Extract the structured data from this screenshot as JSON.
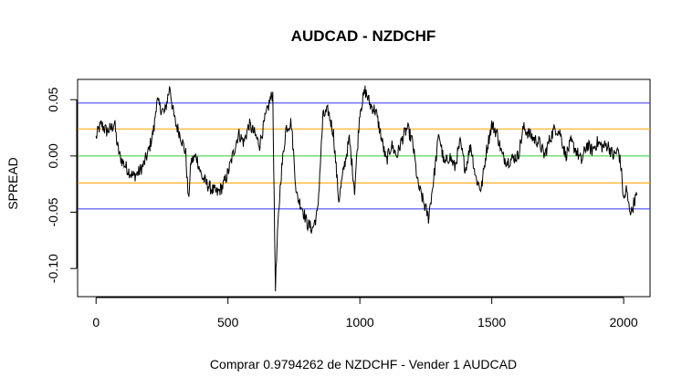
{
  "chart_data": {
    "type": "line",
    "title": "AUDCAD - NZDCHF",
    "xlabel": "Comprar 0.9794262 de NZDCHF - Vender 1 AUDCAD",
    "ylabel": "SPREAD",
    "xlim": [
      -70,
      2100
    ],
    "ylim": [
      -0.125,
      0.068
    ],
    "x_ticks": [
      0,
      500,
      1000,
      1500,
      2000
    ],
    "x_tick_labels": [
      "0",
      "500",
      "1000",
      "1500",
      "2000"
    ],
    "y_ticks": [
      -0.1,
      -0.05,
      0.0,
      0.05
    ],
    "y_tick_labels": [
      "-0.10",
      "-0.05",
      "0.00",
      "0.05"
    ],
    "grid": false,
    "legend": "none",
    "hlines": [
      {
        "y": 0.047,
        "color": "#3333ff"
      },
      {
        "y": 0.024,
        "color": "#ffa500"
      },
      {
        "y": 0.0,
        "color": "#33cc33"
      },
      {
        "y": -0.024,
        "color": "#ffa500"
      },
      {
        "y": -0.047,
        "color": "#3333ff"
      }
    ],
    "series": [
      {
        "color": "#000000",
        "x": [
          0,
          10,
          20,
          40,
          60,
          70,
          80,
          90,
          100,
          120,
          140,
          160,
          180,
          200,
          220,
          230,
          240,
          260,
          280,
          290,
          300,
          320,
          340,
          350,
          360,
          380,
          400,
          420,
          440,
          460,
          480,
          500,
          520,
          540,
          560,
          580,
          600,
          620,
          640,
          660,
          670,
          675,
          680,
          690,
          700,
          720,
          740,
          760,
          780,
          800,
          820,
          840,
          860,
          880,
          900,
          920,
          940,
          960,
          980,
          1000,
          1020,
          1040,
          1060,
          1080,
          1100,
          1120,
          1140,
          1160,
          1180,
          1200,
          1220,
          1240,
          1260,
          1280,
          1300,
          1320,
          1340,
          1360,
          1380,
          1400,
          1420,
          1440,
          1460,
          1480,
          1500,
          1520,
          1540,
          1560,
          1580,
          1600,
          1620,
          1640,
          1660,
          1680,
          1700,
          1720,
          1740,
          1760,
          1780,
          1800,
          1820,
          1840,
          1860,
          1880,
          1900,
          1920,
          1940,
          1960,
          1980,
          1990,
          2000,
          2010,
          2020,
          2030,
          2040,
          2050
        ],
        "y": [
          0.016,
          0.024,
          0.028,
          0.022,
          0.025,
          0.03,
          0.01,
          0.0,
          -0.005,
          -0.012,
          -0.018,
          -0.015,
          -0.008,
          0.005,
          0.025,
          0.05,
          0.044,
          0.038,
          0.062,
          0.042,
          0.03,
          0.018,
          0.002,
          -0.04,
          -0.005,
          0.0,
          -0.018,
          -0.025,
          -0.03,
          -0.033,
          -0.027,
          -0.015,
          0.002,
          0.02,
          0.012,
          0.028,
          0.02,
          0.01,
          0.032,
          0.05,
          0.055,
          -0.04,
          -0.115,
          -0.06,
          -0.02,
          0.025,
          0.03,
          -0.035,
          -0.045,
          -0.06,
          -0.065,
          -0.05,
          0.035,
          0.04,
          0.02,
          -0.04,
          -0.01,
          0.015,
          -0.03,
          0.04,
          0.058,
          0.045,
          0.04,
          0.018,
          -0.005,
          0.01,
          0.0,
          0.015,
          0.025,
          0.012,
          -0.025,
          -0.04,
          -0.055,
          -0.02,
          0.02,
          -0.008,
          0.0,
          -0.01,
          0.012,
          -0.012,
          0.01,
          -0.02,
          -0.03,
          0.005,
          0.028,
          0.02,
          0.0,
          -0.005,
          -0.002,
          0.0,
          0.025,
          0.02,
          0.015,
          0.012,
          0.0,
          0.015,
          0.025,
          0.02,
          0.0,
          0.012,
          0.005,
          -0.005,
          0.01,
          0.005,
          0.012,
          0.008,
          0.01,
          0.0,
          0.005,
          -0.01,
          -0.04,
          -0.03,
          -0.045,
          -0.05,
          -0.04,
          -0.035
        ]
      }
    ]
  }
}
